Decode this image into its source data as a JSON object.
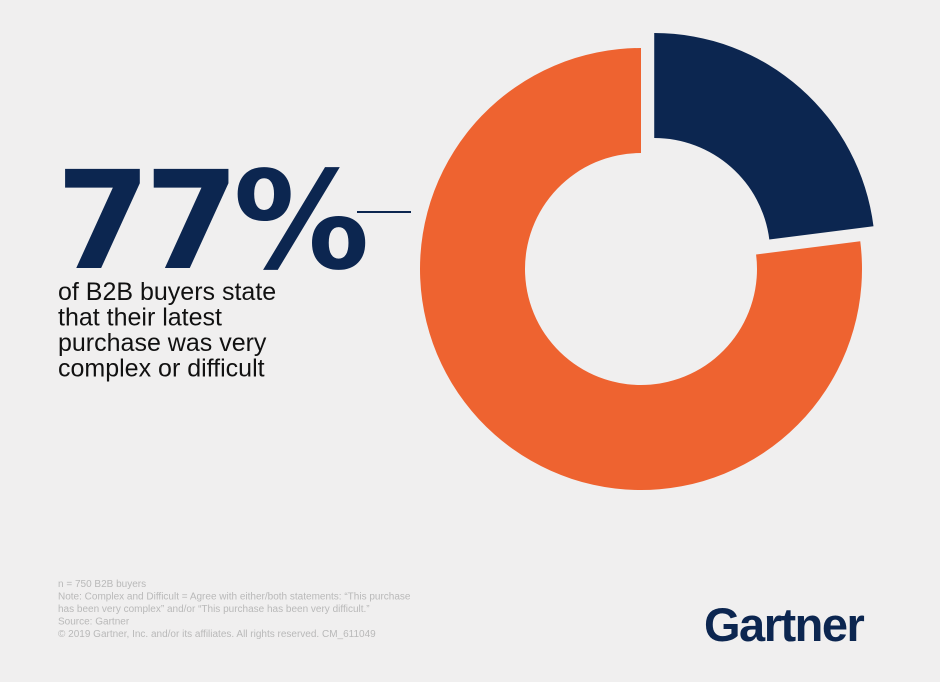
{
  "chart_data": {
    "type": "donut",
    "values": [
      77,
      23
    ],
    "colors": [
      "#ee6330",
      "#0c2650"
    ],
    "value_labels": [
      "77%",
      null
    ],
    "caption": [
      "of B2B buyers state",
      "that their latest",
      "purchase was very",
      "complex or difficult"
    ],
    "notes": [
      "n = 750 B2B buyers",
      "Note: Complex and Difficult = Agree with either/both statements: “This purchase",
      "has been very complex” and/or “This purchase has been very difficult.”",
      "Source: Gartner",
      "© 2019 Gartner, Inc. and/or its affiliates. All rights reserved. CM_611049"
    ],
    "logo": "Gartner"
  }
}
